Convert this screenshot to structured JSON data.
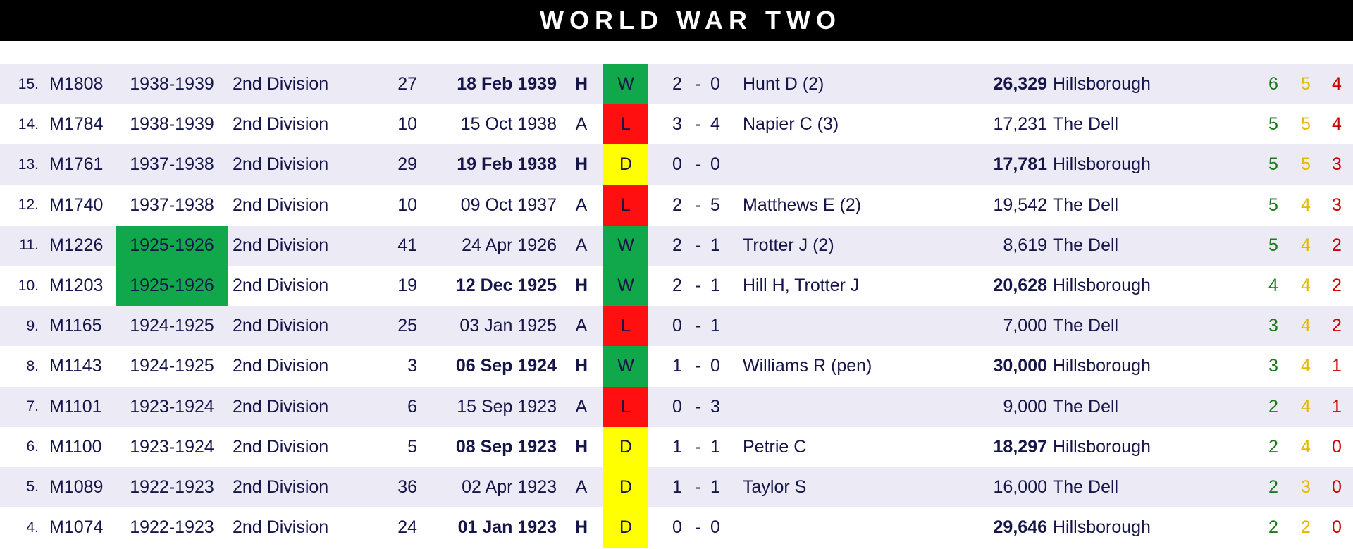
{
  "title": "WORLD WAR TWO",
  "colors": {
    "win": "#10a84a",
    "loss": "#ff0f0f",
    "draw": "#ffff00",
    "text": "#15154a",
    "row_shade": "#ebeaf5",
    "w_count": "#1b7a1b",
    "d_count": "#e5b800",
    "l_count": "#cc0000"
  },
  "rows": [
    {
      "num": "15.",
      "id": "M1808",
      "season": "1938-1939",
      "season_highlight": false,
      "division": "2nd Division",
      "pos": "27",
      "date": "18 Feb 1939",
      "venue": "H",
      "result": "W",
      "score_home": "2",
      "dash": "-",
      "score_away": "0",
      "scorers": "Hunt D (2)",
      "attendance": "26,329",
      "ground": "Hillsborough",
      "w": "6",
      "d": "5",
      "l": "4"
    },
    {
      "num": "14.",
      "id": "M1784",
      "season": "1938-1939",
      "season_highlight": false,
      "division": "2nd Division",
      "pos": "10",
      "date": "15 Oct 1938",
      "venue": "A",
      "result": "L",
      "score_home": "3",
      "dash": "-",
      "score_away": "4",
      "scorers": "Napier C (3)",
      "attendance": "17,231",
      "ground": "The Dell",
      "w": "5",
      "d": "5",
      "l": "4"
    },
    {
      "num": "13.",
      "id": "M1761",
      "season": "1937-1938",
      "season_highlight": false,
      "division": "2nd Division",
      "pos": "29",
      "date": "19 Feb 1938",
      "venue": "H",
      "result": "D",
      "score_home": "0",
      "dash": "-",
      "score_away": "0",
      "scorers": "",
      "attendance": "17,781",
      "ground": "Hillsborough",
      "w": "5",
      "d": "5",
      "l": "3"
    },
    {
      "num": "12.",
      "id": "M1740",
      "season": "1937-1938",
      "season_highlight": false,
      "division": "2nd Division",
      "pos": "10",
      "date": "09 Oct 1937",
      "venue": "A",
      "result": "L",
      "score_home": "2",
      "dash": "-",
      "score_away": "5",
      "scorers": "Matthews E (2)",
      "attendance": "19,542",
      "ground": "The Dell",
      "w": "5",
      "d": "4",
      "l": "3"
    },
    {
      "num": "11.",
      "id": "M1226",
      "season": "1925-1926",
      "season_highlight": true,
      "division": "2nd Division",
      "pos": "41",
      "date": "24 Apr 1926",
      "venue": "A",
      "result": "W",
      "score_home": "2",
      "dash": "-",
      "score_away": "1",
      "scorers": "Trotter J (2)",
      "attendance": "8,619",
      "ground": "The Dell",
      "w": "5",
      "d": "4",
      "l": "2"
    },
    {
      "num": "10.",
      "id": "M1203",
      "season": "1925-1926",
      "season_highlight": true,
      "division": "2nd Division",
      "pos": "19",
      "date": "12 Dec 1925",
      "venue": "H",
      "result": "W",
      "score_home": "2",
      "dash": "-",
      "score_away": "1",
      "scorers": "Hill H, Trotter J",
      "attendance": "20,628",
      "ground": "Hillsborough",
      "w": "4",
      "d": "4",
      "l": "2"
    },
    {
      "num": "9.",
      "id": "M1165",
      "season": "1924-1925",
      "season_highlight": false,
      "division": "2nd Division",
      "pos": "25",
      "date": "03 Jan 1925",
      "venue": "A",
      "result": "L",
      "score_home": "0",
      "dash": "-",
      "score_away": "1",
      "scorers": "",
      "attendance": "7,000",
      "ground": "The Dell",
      "w": "3",
      "d": "4",
      "l": "2"
    },
    {
      "num": "8.",
      "id": "M1143",
      "season": "1924-1925",
      "season_highlight": false,
      "division": "2nd Division",
      "pos": "3",
      "date": "06 Sep 1924",
      "venue": "H",
      "result": "W",
      "score_home": "1",
      "dash": "-",
      "score_away": "0",
      "scorers": "Williams R (pen)",
      "attendance": "30,000",
      "ground": "Hillsborough",
      "w": "3",
      "d": "4",
      "l": "1"
    },
    {
      "num": "7.",
      "id": "M1101",
      "season": "1923-1924",
      "season_highlight": false,
      "division": "2nd Division",
      "pos": "6",
      "date": "15 Sep 1923",
      "venue": "A",
      "result": "L",
      "score_home": "0",
      "dash": "-",
      "score_away": "3",
      "scorers": "",
      "attendance": "9,000",
      "ground": "The Dell",
      "w": "2",
      "d": "4",
      "l": "1"
    },
    {
      "num": "6.",
      "id": "M1100",
      "season": "1923-1924",
      "season_highlight": false,
      "division": "2nd Division",
      "pos": "5",
      "date": "08 Sep 1923",
      "venue": "H",
      "result": "D",
      "score_home": "1",
      "dash": "-",
      "score_away": "1",
      "scorers": "Petrie C",
      "attendance": "18,297",
      "ground": "Hillsborough",
      "w": "2",
      "d": "4",
      "l": "0"
    },
    {
      "num": "5.",
      "id": "M1089",
      "season": "1922-1923",
      "season_highlight": false,
      "division": "2nd Division",
      "pos": "36",
      "date": "02 Apr 1923",
      "venue": "A",
      "result": "D",
      "score_home": "1",
      "dash": "-",
      "score_away": "1",
      "scorers": "Taylor S",
      "attendance": "16,000",
      "ground": "The Dell",
      "w": "2",
      "d": "3",
      "l": "0"
    },
    {
      "num": "4.",
      "id": "M1074",
      "season": "1922-1923",
      "season_highlight": false,
      "division": "2nd Division",
      "pos": "24",
      "date": "01 Jan 1923",
      "venue": "H",
      "result": "D",
      "score_home": "0",
      "dash": "-",
      "score_away": "0",
      "scorers": "",
      "attendance": "29,646",
      "ground": "Hillsborough",
      "w": "2",
      "d": "2",
      "l": "0"
    }
  ]
}
